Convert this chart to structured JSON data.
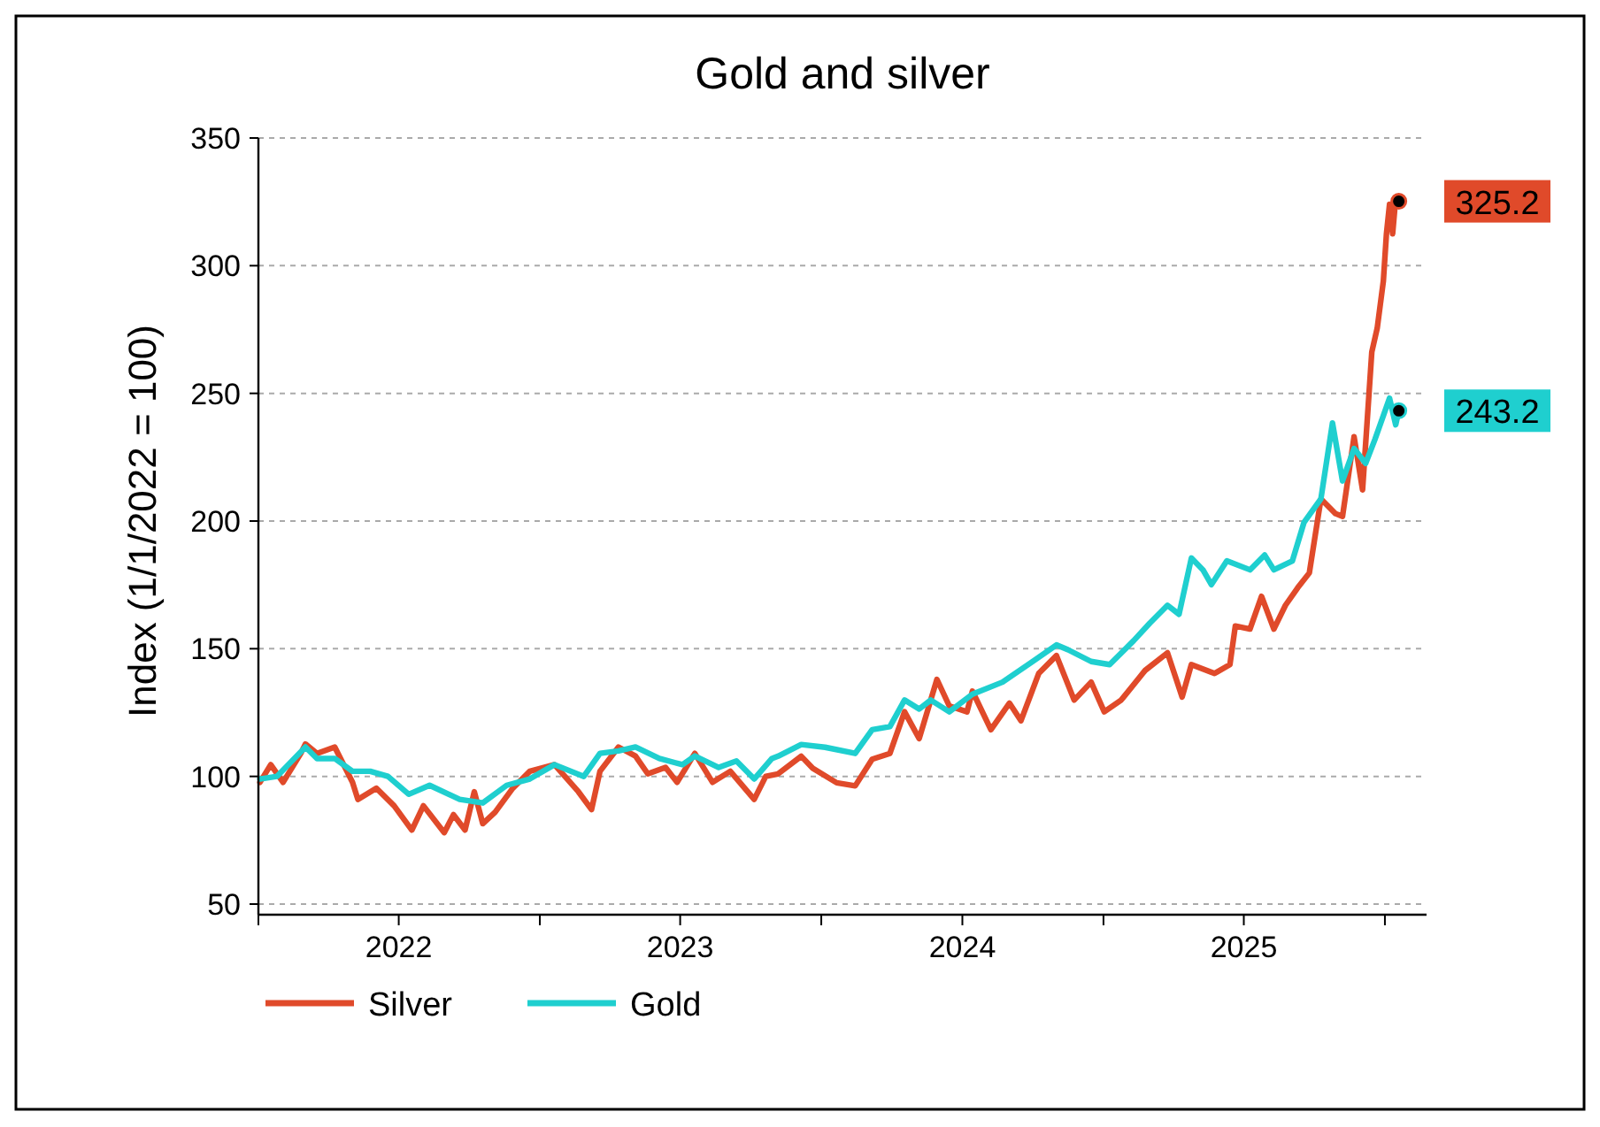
{
  "chart_data": {
    "type": "line",
    "title": "Gold and silver",
    "ylabel": "Index (1/1/2022 = 100)",
    "xlim": [
      "2022-01-01",
      "2026-02-24"
    ],
    "xticks": [
      {
        "value": "2022-01-01",
        "label": null
      },
      {
        "value": "2022-07-02",
        "label": "2022"
      },
      {
        "value": "2023-01-01",
        "label": null
      },
      {
        "value": "2023-07-02",
        "label": "2023"
      },
      {
        "value": "2024-01-01",
        "label": null
      },
      {
        "value": "2024-07-02",
        "label": "2024"
      },
      {
        "value": "2025-01-01",
        "label": null
      },
      {
        "value": "2025-07-02",
        "label": "2025"
      },
      {
        "value": "2026-01-01",
        "label": null
      }
    ],
    "ylim": [
      50,
      350
    ],
    "yticks": [
      50,
      100,
      150,
      200,
      250,
      300,
      350
    ],
    "grid": "y",
    "legend": "bottom",
    "marker": "none",
    "line_style": "solid",
    "series": [
      {
        "name": "Silver",
        "color": "#e04a2a",
        "x": [
          "2022-01-03",
          "2022-01-17",
          "2022-02-02",
          "2022-02-25",
          "2022-03-03",
          "2022-03-18",
          "2022-04-10",
          "2022-05-03",
          "2022-05-10",
          "2022-06-03",
          "2022-06-26",
          "2022-07-19",
          "2022-08-03",
          "2022-08-30",
          "2022-09-11",
          "2022-09-26",
          "2022-10-08",
          "2022-10-19",
          "2022-11-04",
          "2022-11-27",
          "2022-12-19",
          "2023-01-20",
          "2023-02-20",
          "2023-03-09",
          "2023-03-20",
          "2023-04-13",
          "2023-05-05",
          "2023-05-21",
          "2023-06-13",
          "2023-06-28",
          "2023-07-21",
          "2023-08-13",
          "2023-09-05",
          "2023-10-06",
          "2023-10-21",
          "2023-11-06",
          "2023-12-06",
          "2023-12-21",
          "2024-01-21",
          "2024-02-14",
          "2024-03-07",
          "2024-03-30",
          "2024-04-18",
          "2024-05-07",
          "2024-05-30",
          "2024-06-15",
          "2024-07-08",
          "2024-07-15",
          "2024-08-08",
          "2024-09-01",
          "2024-09-16",
          "2024-10-09",
          "2024-11-01",
          "2024-11-24",
          "2024-12-16",
          "2025-01-02",
          "2025-01-24",
          "2025-02-24",
          "2025-03-25",
          "2025-04-13",
          "2025-04-25",
          "2025-05-25",
          "2025-06-14",
          "2025-06-21",
          "2025-07-10",
          "2025-07-25",
          "2025-08-10",
          "2025-08-25",
          "2025-09-10",
          "2025-09-25",
          "2025-10-10",
          "2025-10-29",
          "2025-11-07",
          "2025-11-22",
          "2025-12-03",
          "2025-12-15",
          "2025-12-22",
          "2025-12-30",
          "2026-01-03",
          "2026-01-07",
          "2026-01-11",
          "2026-01-15",
          "2026-01-19"
        ],
        "values": [
          97.7,
          104.6,
          97.7,
          109,
          112.7,
          109,
          111.5,
          97.7,
          91,
          95.4,
          88.5,
          79,
          88.5,
          78,
          85,
          79,
          94,
          81.5,
          86,
          95.4,
          102,
          104.6,
          94,
          87,
          102,
          111.5,
          108,
          101,
          103.5,
          97.7,
          109,
          97.7,
          102,
          91,
          100,
          101,
          107.9,
          103.2,
          97.5,
          96.3,
          106.7,
          109,
          125.3,
          114.8,
          138,
          127.6,
          125.3,
          133.4,
          118.3,
          128.7,
          121.8,
          140.3,
          147.3,
          129.9,
          136.9,
          125.3,
          129.9,
          141.5,
          148.4,
          131.1,
          143.8,
          140.3,
          143.8,
          158.9,
          157.7,
          170.5,
          157.7,
          167,
          173.9,
          179.7,
          208.7,
          202.9,
          201.8,
          233,
          212.2,
          266.2,
          275.5,
          294,
          312.5,
          324,
          312.5,
          326.4,
          325.2
        ],
        "value_labels": [
          null,
          null,
          null,
          null,
          null,
          null,
          null,
          null,
          null,
          null,
          null,
          null,
          null,
          null,
          null,
          null,
          null,
          null,
          null,
          null,
          null,
          null,
          null,
          null,
          null,
          null,
          null,
          null,
          null,
          null,
          null,
          null,
          null,
          null,
          null,
          null,
          null,
          null,
          null,
          null,
          null,
          null,
          null,
          null,
          null,
          null,
          null,
          null,
          null,
          null,
          null,
          null,
          null,
          null,
          null,
          null,
          null,
          null,
          null,
          null,
          null,
          null,
          null,
          null,
          null,
          null,
          null,
          null,
          null,
          null,
          null,
          null,
          null,
          null,
          null,
          null,
          null,
          null,
          null,
          null,
          null,
          null,
          "325.2"
        ]
      },
      {
        "name": "Gold",
        "color": "#1fcfcf",
        "x": [
          "2022-01-03",
          "2022-01-25",
          "2022-03-03",
          "2022-03-18",
          "2022-04-10",
          "2022-05-03",
          "2022-05-26",
          "2022-06-18",
          "2022-07-15",
          "2022-08-11",
          "2022-09-19",
          "2022-10-19",
          "2022-11-19",
          "2022-12-19",
          "2023-01-20",
          "2023-02-27",
          "2023-03-20",
          "2023-04-13",
          "2023-05-05",
          "2023-06-05",
          "2023-07-05",
          "2023-07-21",
          "2023-08-21",
          "2023-09-13",
          "2023-10-06",
          "2023-10-29",
          "2023-11-06",
          "2023-12-06",
          "2024-01-06",
          "2024-02-14",
          "2024-03-07",
          "2024-03-30",
          "2024-04-18",
          "2024-05-07",
          "2024-05-22",
          "2024-06-15",
          "2024-07-15",
          "2024-08-23",
          "2024-10-01",
          "2024-11-01",
          "2024-11-16",
          "2024-12-16",
          "2025-01-09",
          "2025-02-09",
          "2025-03-02",
          "2025-03-25",
          "2025-04-09",
          "2025-04-25",
          "2025-05-10",
          "2025-05-21",
          "2025-06-10",
          "2025-07-10",
          "2025-07-29",
          "2025-08-10",
          "2025-09-03",
          "2025-09-18",
          "2025-10-10",
          "2025-10-25",
          "2025-11-07",
          "2025-11-22",
          "2025-12-07",
          "2025-12-19",
          "2026-01-07",
          "2026-01-15",
          "2026-01-19"
        ],
        "values": [
          99,
          100,
          111.5,
          107,
          107,
          102,
          102,
          100,
          93,
          96.5,
          91,
          89.6,
          96.5,
          99,
          104.6,
          100,
          109,
          110,
          111.5,
          107,
          104.6,
          108,
          103.5,
          106,
          99,
          107,
          107.9,
          112.5,
          111.4,
          109,
          118.3,
          119.5,
          129.9,
          126.4,
          129.9,
          125.3,
          132.2,
          136.9,
          145,
          151.5,
          149.6,
          145,
          143.8,
          153.1,
          160,
          167,
          163.5,
          185.5,
          180.9,
          175.1,
          184.4,
          180.9,
          186.7,
          180.9,
          184.4,
          199.4,
          208.7,
          238.4,
          215.7,
          228.4,
          222.6,
          231.9,
          248.1,
          237.7,
          243.2
        ],
        "value_labels": [
          null,
          null,
          null,
          null,
          null,
          null,
          null,
          null,
          null,
          null,
          null,
          null,
          null,
          null,
          null,
          null,
          null,
          null,
          null,
          null,
          null,
          null,
          null,
          null,
          null,
          null,
          null,
          null,
          null,
          null,
          null,
          null,
          null,
          null,
          null,
          null,
          null,
          null,
          null,
          null,
          null,
          null,
          null,
          null,
          null,
          null,
          null,
          null,
          null,
          null,
          null,
          null,
          null,
          null,
          null,
          null,
          null,
          null,
          null,
          null,
          null,
          null,
          null,
          null,
          "243.2"
        ]
      }
    ]
  }
}
